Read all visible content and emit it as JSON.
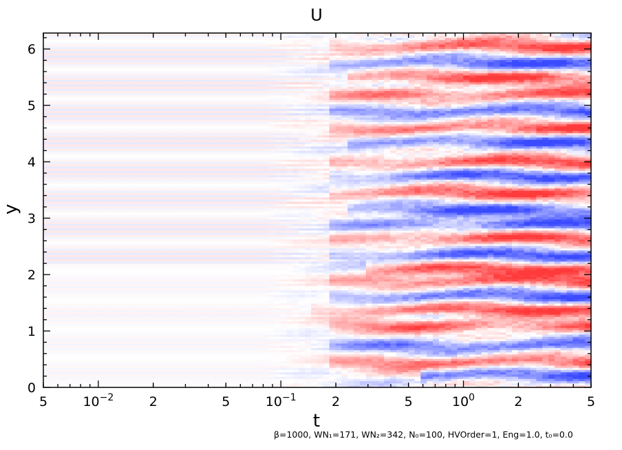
{
  "chart_data": {
    "type": "heatmap",
    "title": "U",
    "xlabel": "t",
    "ylabel": "y",
    "x_scale": "log",
    "xlim": [
      0.005,
      5
    ],
    "ylim": [
      0,
      6.283
    ],
    "x_ticks": [
      {
        "value": 0.005,
        "label": "5"
      },
      {
        "value": 0.01,
        "label": "10",
        "exp": "−2"
      },
      {
        "value": 0.02,
        "label": "2"
      },
      {
        "value": 0.05,
        "label": "5"
      },
      {
        "value": 0.1,
        "label": "10",
        "exp": "−1"
      },
      {
        "value": 0.2,
        "label": "2"
      },
      {
        "value": 0.5,
        "label": "5"
      },
      {
        "value": 1,
        "label": "10",
        "exp": "0"
      },
      {
        "value": 2,
        "label": "2"
      },
      {
        "value": 5,
        "label": "5"
      }
    ],
    "y_ticks": [
      {
        "value": 0,
        "label": "0"
      },
      {
        "value": 1,
        "label": "1"
      },
      {
        "value": 2,
        "label": "2"
      },
      {
        "value": 3,
        "label": "3"
      },
      {
        "value": 4,
        "label": "4"
      },
      {
        "value": 5,
        "label": "5"
      },
      {
        "value": 6,
        "label": "6"
      }
    ],
    "colormap": {
      "negative": "#3a4bff",
      "zero": "#ffffff",
      "positive": "#ff3a3a"
    },
    "grid": false,
    "strong_bands": [
      {
        "y": 0.22,
        "sign": -1,
        "from_t": 1.0
      },
      {
        "y": 0.45,
        "sign": 1,
        "from_t": 0.3
      },
      {
        "y": 0.75,
        "sign": -1,
        "from_t": 0.3
      },
      {
        "y": 1.1,
        "sign": 1,
        "from_t": 0.3
      },
      {
        "y": 1.38,
        "sign": 1,
        "from_t": 0.25
      },
      {
        "y": 1.62,
        "sign": -1,
        "from_t": 0.3
      },
      {
        "y": 1.9,
        "sign": 1,
        "from_t": 0.3
      },
      {
        "y": 2.1,
        "sign": 1,
        "from_t": 0.5
      },
      {
        "y": 2.35,
        "sign": -1,
        "from_t": 0.3
      },
      {
        "y": 2.65,
        "sign": 1,
        "from_t": 0.3
      },
      {
        "y": 2.9,
        "sign": -1,
        "from_t": 0.3
      },
      {
        "y": 3.15,
        "sign": -1,
        "from_t": 0.4
      },
      {
        "y": 3.45,
        "sign": 1,
        "from_t": 0.3
      },
      {
        "y": 3.75,
        "sign": -1,
        "from_t": 0.3
      },
      {
        "y": 4.0,
        "sign": 1,
        "from_t": 0.3
      },
      {
        "y": 4.35,
        "sign": -1,
        "from_t": 0.4
      },
      {
        "y": 4.6,
        "sign": 1,
        "from_t": 0.3
      },
      {
        "y": 4.9,
        "sign": -1,
        "from_t": 0.3
      },
      {
        "y": 5.2,
        "sign": 1,
        "from_t": 0.3
      },
      {
        "y": 5.5,
        "sign": 1,
        "from_t": 0.4
      },
      {
        "y": 5.75,
        "sign": -1,
        "from_t": 0.3
      },
      {
        "y": 6.05,
        "sign": 1,
        "from_t": 0.3
      }
    ]
  },
  "caption": "β=1000, WN₁=171, WN₂=342, N₀=100, HVOrder=1, Eng=1.0, t₀=0.0"
}
